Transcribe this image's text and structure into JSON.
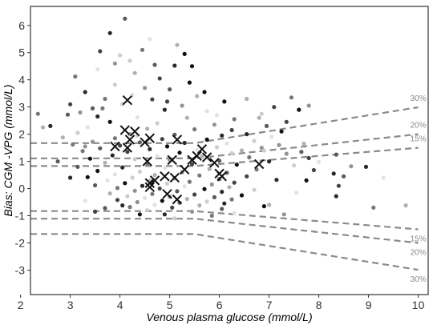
{
  "chart_data": {
    "type": "scatter",
    "title": "",
    "xlabel": "Venous plasma glucose (mmol/L)",
    "ylabel": "Bias: CGM -VPG (mmol/L)",
    "xlim": [
      2.2,
      10.2
    ],
    "ylim": [
      -3.9,
      6.7
    ],
    "xticks": [
      "2",
      "3",
      "4",
      "5",
      "6",
      "7",
      "8",
      "9",
      "10"
    ],
    "yticks": [
      "-3",
      "-2",
      "-1",
      "0",
      "1",
      "2",
      "3",
      "4",
      "5",
      "6"
    ],
    "grid": false,
    "colors": {
      "axis": "#333333",
      "reference_line": "#8a8a8a",
      "cross_marker": "#111111"
    },
    "reference_lines": [
      {
        "label": "30%",
        "side": "upper",
        "points": [
          [
            2.2,
            1.67
          ],
          [
            5.5,
            1.67
          ],
          [
            10.0,
            2.99
          ]
        ]
      },
      {
        "label": "20%",
        "side": "upper",
        "points": [
          [
            2.2,
            1.11
          ],
          [
            5.5,
            1.11
          ],
          [
            10.0,
            2.0
          ]
        ]
      },
      {
        "label": "15%",
        "side": "upper",
        "points": [
          [
            2.2,
            0.83
          ],
          [
            5.5,
            0.83
          ],
          [
            10.0,
            1.5
          ]
        ]
      },
      {
        "label": "15%",
        "side": "lower",
        "points": [
          [
            2.2,
            -0.83
          ],
          [
            5.5,
            -0.83
          ],
          [
            10.0,
            -1.5
          ]
        ]
      },
      {
        "label": "20%",
        "side": "lower",
        "points": [
          [
            2.2,
            -1.11
          ],
          [
            5.5,
            -1.11
          ],
          [
            10.0,
            -2.0
          ]
        ]
      },
      {
        "label": "30%",
        "side": "lower",
        "points": [
          [
            2.2,
            -1.67
          ],
          [
            5.5,
            -1.67
          ],
          [
            10.0,
            -2.99
          ]
        ]
      }
    ],
    "series": [
      {
        "marker": "dot",
        "points": [
          [
            4.1,
            6.25
          ],
          [
            3.8,
            5.72
          ],
          [
            4.6,
            5.5
          ],
          [
            5.15,
            5.28
          ],
          [
            4.45,
            5.1
          ],
          [
            3.6,
            5.05
          ],
          [
            5.3,
            4.95
          ],
          [
            4.2,
            4.7
          ],
          [
            3.9,
            4.6
          ],
          [
            4.7,
            4.55
          ],
          [
            5.1,
            4.52
          ],
          [
            3.55,
            4.38
          ],
          [
            4.3,
            4.25
          ],
          [
            3.1,
            4.12
          ],
          [
            4.8,
            4.05
          ],
          [
            5.4,
            3.9
          ],
          [
            3.9,
            3.82
          ],
          [
            4.5,
            3.7
          ],
          [
            5.0,
            3.65
          ],
          [
            3.3,
            3.55
          ],
          [
            4.25,
            3.45
          ],
          [
            5.55,
            3.4
          ],
          [
            3.7,
            3.3
          ],
          [
            4.65,
            3.28
          ],
          [
            6.1,
            3.2
          ],
          [
            4.05,
            3.1
          ],
          [
            5.25,
            3.05
          ],
          [
            3.45,
            2.95
          ],
          [
            4.9,
            2.9
          ],
          [
            5.75,
            2.85
          ],
          [
            6.55,
            3.3
          ],
          [
            7.45,
            3.35
          ],
          [
            7.1,
            3.0
          ],
          [
            7.6,
            2.9
          ],
          [
            6.85,
            2.75
          ],
          [
            3.2,
            2.8
          ],
          [
            2.95,
            2.72
          ],
          [
            3.55,
            2.65
          ],
          [
            4.35,
            2.62
          ],
          [
            5.35,
            2.6
          ],
          [
            6.3,
            2.55
          ],
          [
            7.35,
            2.45
          ],
          [
            3.8,
            2.45
          ],
          [
            4.75,
            2.4
          ],
          [
            5.9,
            2.35
          ],
          [
            6.95,
            2.3
          ],
          [
            2.6,
            2.3
          ],
          [
            3.35,
            2.25
          ],
          [
            4.55,
            2.2
          ],
          [
            5.5,
            2.18
          ],
          [
            6.25,
            2.15
          ],
          [
            7.25,
            2.1
          ],
          [
            3.15,
            2.05
          ],
          [
            4.2,
            2.0
          ],
          [
            5.1,
            1.98
          ],
          [
            6.05,
            1.95
          ],
          [
            7.05,
            1.9
          ],
          [
            2.85,
            1.88
          ],
          [
            3.9,
            1.85
          ],
          [
            4.85,
            1.82
          ],
          [
            5.75,
            1.8
          ],
          [
            6.7,
            1.75
          ],
          [
            3.45,
            1.72
          ],
          [
            4.4,
            1.7
          ],
          [
            5.3,
            1.68
          ],
          [
            6.15,
            1.66
          ],
          [
            7.7,
            1.65
          ],
          [
            3.05,
            1.62
          ],
          [
            4.0,
            1.58
          ],
          [
            4.95,
            1.55
          ],
          [
            5.95,
            1.52
          ],
          [
            6.85,
            1.5
          ],
          [
            3.6,
            1.48
          ],
          [
            4.6,
            1.45
          ],
          [
            5.55,
            1.42
          ],
          [
            6.45,
            1.4
          ],
          [
            3.25,
            1.38
          ],
          [
            4.15,
            1.35
          ],
          [
            5.2,
            1.32
          ],
          [
            6.25,
            1.3
          ],
          [
            7.35,
            1.28
          ],
          [
            8.35,
            1.25
          ],
          [
            3.85,
            1.22
          ],
          [
            4.75,
            1.2
          ],
          [
            5.65,
            1.18
          ],
          [
            6.6,
            1.15
          ],
          [
            7.8,
            1.12
          ],
          [
            3.4,
            1.1
          ],
          [
            4.3,
            1.08
          ],
          [
            5.0,
            1.05
          ],
          [
            6.0,
            1.02
          ],
          [
            7.0,
            1.0
          ],
          [
            8.0,
            0.98
          ],
          [
            3.7,
            0.95
          ],
          [
            4.55,
            0.92
          ],
          [
            5.45,
            0.9
          ],
          [
            6.35,
            0.88
          ],
          [
            7.5,
            0.85
          ],
          [
            8.65,
            0.82
          ],
          [
            3.15,
            0.8
          ],
          [
            4.05,
            0.78
          ],
          [
            4.9,
            0.75
          ],
          [
            5.8,
            0.72
          ],
          [
            6.75,
            0.7
          ],
          [
            7.9,
            0.68
          ],
          [
            3.55,
            0.65
          ],
          [
            4.4,
            0.62
          ],
          [
            5.25,
            0.6
          ],
          [
            6.15,
            0.58
          ],
          [
            8.3,
            0.55
          ],
          [
            3.9,
            0.52
          ],
          [
            4.7,
            0.5
          ],
          [
            5.6,
            0.48
          ],
          [
            6.55,
            0.45
          ],
          [
            3.35,
            0.42
          ],
          [
            4.25,
            0.4
          ],
          [
            5.1,
            0.38
          ],
          [
            6.0,
            0.35
          ],
          [
            7.15,
            0.32
          ],
          [
            3.75,
            0.3
          ],
          [
            4.6,
            0.28
          ],
          [
            5.4,
            0.25
          ],
          [
            6.3,
            0.22
          ],
          [
            4.1,
            0.2
          ],
          [
            4.95,
            0.18
          ],
          [
            5.85,
            0.15
          ],
          [
            3.5,
            0.12
          ],
          [
            4.45,
            0.1
          ],
          [
            5.3,
            0.08
          ],
          [
            6.2,
            0.05
          ],
          [
            3.95,
            0.02
          ],
          [
            4.8,
            0.0
          ],
          [
            5.7,
            -0.02
          ],
          [
            6.7,
            -0.05
          ],
          [
            4.3,
            -0.08
          ],
          [
            5.15,
            -0.1
          ],
          [
            6.05,
            -0.12
          ],
          [
            7.55,
            -0.15
          ],
          [
            3.8,
            -0.18
          ],
          [
            4.65,
            -0.2
          ],
          [
            5.5,
            -0.22
          ],
          [
            6.45,
            -0.25
          ],
          [
            4.15,
            -0.28
          ],
          [
            5.0,
            -0.3
          ],
          [
            5.9,
            -0.32
          ],
          [
            8.35,
            -0.28
          ],
          [
            4.5,
            -0.35
          ],
          [
            5.35,
            -0.38
          ],
          [
            6.25,
            -0.4
          ],
          [
            3.95,
            -0.42
          ],
          [
            4.85,
            -0.45
          ],
          [
            5.75,
            -0.48
          ],
          [
            4.35,
            -0.5
          ],
          [
            5.2,
            -0.52
          ],
          [
            6.1,
            -0.55
          ],
          [
            4.7,
            -0.6
          ],
          [
            5.6,
            -0.62
          ],
          [
            4.2,
            -0.68
          ],
          [
            5.05,
            -0.7
          ],
          [
            6.9,
            -0.65
          ],
          [
            4.55,
            -0.8
          ],
          [
            5.45,
            -0.85
          ],
          [
            3.7,
            -0.72
          ],
          [
            4.9,
            -0.95
          ],
          [
            6.3,
            -0.9
          ],
          [
            7.0,
            -0.6
          ],
          [
            5.85,
            -1.0
          ],
          [
            3.5,
            -0.85
          ],
          [
            4.4,
            -0.95
          ],
          [
            5.1,
            -1.1
          ],
          [
            7.3,
            -0.95
          ],
          [
            6.05,
            -0.75
          ],
          [
            4.05,
            -0.62
          ],
          [
            3.3,
            -0.45
          ],
          [
            2.45,
            2.25
          ],
          [
            2.35,
            2.75
          ],
          [
            3.0,
            3.1
          ],
          [
            5.45,
            4.5
          ],
          [
            4.0,
            4.9
          ],
          [
            7.8,
            3.05
          ],
          [
            8.5,
            0.45
          ],
          [
            8.95,
            0.8
          ],
          [
            9.3,
            0.4
          ],
          [
            9.75,
            -0.62
          ],
          [
            9.1,
            -0.7
          ],
          [
            8.4,
            0.1
          ],
          [
            7.75,
            0.3
          ],
          [
            6.9,
            1.4
          ],
          [
            7.2,
            1.6
          ],
          [
            7.65,
            1.35
          ],
          [
            6.55,
            2.0
          ],
          [
            5.95,
            2.7
          ],
          [
            6.8,
            2.6
          ],
          [
            3.65,
            2.95
          ],
          [
            4.95,
            3.2
          ],
          [
            5.7,
            3.55
          ],
          [
            4.35,
            1.95
          ],
          [
            3.3,
            1.55
          ],
          [
            2.75,
            1.0
          ],
          [
            3.0,
            0.4
          ]
        ]
      },
      {
        "marker": "x",
        "points": [
          [
            4.15,
            3.25
          ],
          [
            4.1,
            2.15
          ],
          [
            4.3,
            2.1
          ],
          [
            4.2,
            1.8
          ],
          [
            4.5,
            1.7
          ],
          [
            4.6,
            1.85
          ],
          [
            3.9,
            1.55
          ],
          [
            4.15,
            1.5
          ],
          [
            5.15,
            1.8
          ],
          [
            5.65,
            1.45
          ],
          [
            5.55,
            1.2
          ],
          [
            5.75,
            1.15
          ],
          [
            5.45,
            1.05
          ],
          [
            5.05,
            1.05
          ],
          [
            4.55,
            1.0
          ],
          [
            5.9,
            0.95
          ],
          [
            6.8,
            0.9
          ],
          [
            6.0,
            0.55
          ],
          [
            5.3,
            0.7
          ],
          [
            6.05,
            0.45
          ],
          [
            4.9,
            0.45
          ],
          [
            4.7,
            0.3
          ],
          [
            5.1,
            0.4
          ],
          [
            4.6,
            0.2
          ],
          [
            4.6,
            0.05
          ],
          [
            5.15,
            -0.4
          ],
          [
            4.95,
            -0.2
          ]
        ]
      }
    ]
  }
}
